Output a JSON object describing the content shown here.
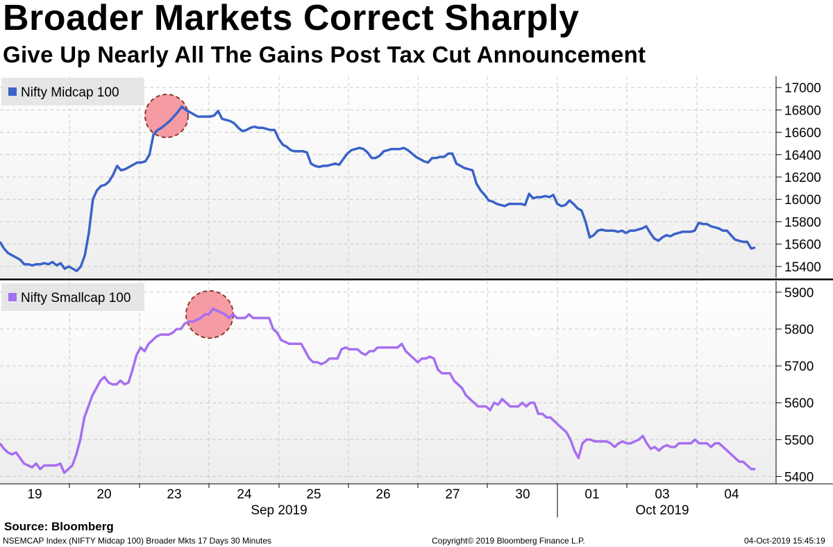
{
  "title": "Broader Markets Correct Sharply",
  "subtitle": "Give Up Nearly All The Gains Post Tax Cut Announcement",
  "source": "Source: Bloomberg",
  "footer": {
    "left": "NSEMCAP Index (NIFTY Midcap 100) Broader Mkts 17 Days 30 Minutes",
    "center": "Copyright© 2019 Bloomberg Finance L.P.",
    "right": "04-Oct-2019 15:45:19"
  },
  "colors": {
    "midcap": "#3a62c8",
    "smallcap": "#a66ff0",
    "highlight": "#f28a94",
    "highlight_border": "#8b3a2a"
  },
  "chart_data": [
    {
      "type": "line",
      "legend_position": "top-left",
      "grid": true,
      "ylim": [
        15300,
        17100
      ],
      "yticks": [
        15400,
        15600,
        15800,
        16000,
        16200,
        16400,
        16600,
        16800,
        17000
      ],
      "series": [
        {
          "name": "Nifty Midcap 100",
          "values": [
            15620,
            15560,
            15520,
            15500,
            15480,
            15460,
            15420,
            15420,
            15410,
            15420,
            15420,
            15430,
            15420,
            15440,
            15410,
            15430,
            15380,
            15400,
            15380,
            15360,
            15400,
            15500,
            15700,
            16000,
            16080,
            16120,
            16130,
            16160,
            16220,
            16300,
            16260,
            16270,
            16290,
            16310,
            16330,
            16330,
            16340,
            16400,
            16580,
            16620,
            16640,
            16670,
            16700,
            16740,
            16780,
            16830,
            16800,
            16780,
            16760,
            16740,
            16740,
            16740,
            16740,
            16750,
            16790,
            16720,
            16710,
            16700,
            16680,
            16640,
            16610,
            16620,
            16640,
            16650,
            16640,
            16640,
            16630,
            16620,
            16620,
            16540,
            16490,
            16470,
            16440,
            16430,
            16430,
            16430,
            16420,
            16320,
            16300,
            16290,
            16300,
            16300,
            16310,
            16320,
            16310,
            16360,
            16410,
            16440,
            16450,
            16460,
            16450,
            16420,
            16370,
            16370,
            16390,
            16430,
            16440,
            16450,
            16450,
            16450,
            16460,
            16440,
            16410,
            16380,
            16360,
            16340,
            16330,
            16370,
            16370,
            16380,
            16380,
            16410,
            16410,
            16320,
            16300,
            16280,
            16270,
            16260,
            16140,
            16080,
            16040,
            15990,
            15980,
            15960,
            15950,
            15940,
            15960,
            15960,
            15960,
            15960,
            15950,
            16050,
            16010,
            16020,
            16020,
            16030,
            16020,
            16040,
            15960,
            15940,
            15950,
            15990,
            15960,
            15920,
            15900,
            15800,
            15660,
            15680,
            15720,
            15730,
            15720,
            15720,
            15720,
            15710,
            15720,
            15700,
            15720,
            15720,
            15730,
            15740,
            15760,
            15700,
            15650,
            15630,
            15660,
            15680,
            15670,
            15690,
            15700,
            15710,
            15710,
            15710,
            15720,
            15790,
            15780,
            15780,
            15760,
            15750,
            15740,
            15720,
            15720,
            15680,
            15640,
            15630,
            15620,
            15620,
            15560,
            15570
          ]
        }
      ]
    },
    {
      "type": "line",
      "legend_position": "top-left",
      "grid": true,
      "ylim": [
        5380,
        5930
      ],
      "yticks": [
        5400,
        5500,
        5600,
        5700,
        5800,
        5900
      ],
      "series": [
        {
          "name": "Nifty Smallcap 100",
          "values": [
            5490,
            5475,
            5465,
            5460,
            5465,
            5450,
            5435,
            5430,
            5425,
            5435,
            5420,
            5430,
            5430,
            5430,
            5430,
            5435,
            5410,
            5420,
            5430,
            5460,
            5500,
            5560,
            5590,
            5620,
            5640,
            5660,
            5670,
            5655,
            5650,
            5650,
            5660,
            5650,
            5655,
            5690,
            5730,
            5750,
            5740,
            5760,
            5770,
            5780,
            5785,
            5785,
            5785,
            5790,
            5800,
            5800,
            5815,
            5820,
            5820,
            5825,
            5830,
            5840,
            5840,
            5855,
            5850,
            5845,
            5840,
            5830,
            5840,
            5830,
            5830,
            5830,
            5840,
            5830,
            5830,
            5830,
            5830,
            5830,
            5800,
            5790,
            5770,
            5765,
            5760,
            5760,
            5760,
            5760,
            5740,
            5720,
            5710,
            5710,
            5705,
            5710,
            5720,
            5720,
            5720,
            5745,
            5750,
            5745,
            5745,
            5745,
            5735,
            5730,
            5740,
            5740,
            5750,
            5750,
            5750,
            5750,
            5750,
            5750,
            5760,
            5740,
            5730,
            5720,
            5710,
            5720,
            5720,
            5725,
            5720,
            5690,
            5680,
            5680,
            5680,
            5660,
            5650,
            5640,
            5620,
            5610,
            5600,
            5590,
            5590,
            5590,
            5580,
            5600,
            5595,
            5610,
            5600,
            5590,
            5590,
            5590,
            5600,
            5590,
            5600,
            5600,
            5570,
            5570,
            5560,
            5560,
            5550,
            5540,
            5530,
            5520,
            5500,
            5470,
            5450,
            5490,
            5500,
            5500,
            5495,
            5495,
            5495,
            5495,
            5490,
            5480,
            5490,
            5495,
            5490,
            5490,
            5495,
            5500,
            5510,
            5490,
            5475,
            5480,
            5470,
            5480,
            5485,
            5480,
            5480,
            5490,
            5490,
            5490,
            5490,
            5500,
            5490,
            5490,
            5490,
            5480,
            5490,
            5490,
            5480,
            5470,
            5460,
            5450,
            5440,
            5440,
            5430,
            5420,
            5420
          ]
        }
      ]
    }
  ],
  "x_axis": {
    "day_labels": [
      "19",
      "20",
      "23",
      "24",
      "25",
      "26",
      "27",
      "30",
      "01",
      "03",
      "04"
    ],
    "month_labels": [
      "Sep 2019",
      "Oct 2019"
    ]
  }
}
